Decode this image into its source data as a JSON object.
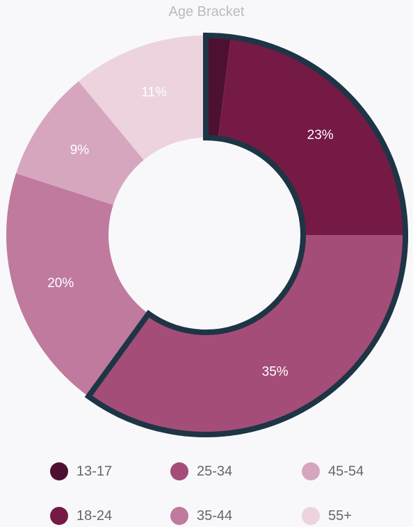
{
  "chart_data": {
    "type": "pie",
    "title": "Age Bracket",
    "slices": [
      {
        "name": "13-17",
        "value": 2,
        "label": "",
        "color": "#4d1030"
      },
      {
        "name": "18-24",
        "value": 23,
        "label": "23%",
        "color": "#751a45"
      },
      {
        "name": "25-34",
        "value": 35,
        "label": "35%",
        "color": "#a44d78"
      },
      {
        "name": "35-44",
        "value": 20,
        "label": "20%",
        "color": "#bf7a9e"
      },
      {
        "name": "45-54",
        "value": 9,
        "label": "9%",
        "color": "#d6a6bf"
      },
      {
        "name": "55+",
        "value": 11,
        "label": "11%",
        "color": "#ecd3dd"
      }
    ],
    "highlight_color": "#1d3545",
    "legend_position": "bottom"
  }
}
